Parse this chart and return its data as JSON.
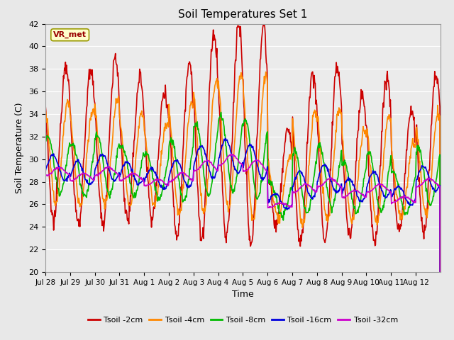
{
  "title": "Soil Temperatures Set 1",
  "xlabel": "Time",
  "ylabel": "Soil Temperature (C)",
  "ylim": [
    20,
    42
  ],
  "yticks": [
    20,
    22,
    24,
    26,
    28,
    30,
    32,
    34,
    36,
    38,
    40,
    42
  ],
  "xtick_labels": [
    "Jul 28",
    "Jul 29",
    "Jul 30",
    "Jul 31",
    "Aug 1",
    "Aug 2",
    "Aug 3",
    "Aug 4",
    "Aug 5",
    "Aug 6",
    "Aug 7",
    "Aug 8",
    "Aug 9",
    "Aug 10",
    "Aug 11",
    "Aug 12"
  ],
  "series": [
    {
      "label": "Tsoil -2cm",
      "color": "#cc0000",
      "amp": 7.0,
      "mean": 31.5,
      "phase": 0.58,
      "depth_lag": 0.0,
      "amp_mod": 1.0
    },
    {
      "label": "Tsoil -4cm",
      "color": "#ff8800",
      "amp": 4.5,
      "mean": 30.5,
      "phase": 0.62,
      "depth_lag": 0.05,
      "amp_mod": 0.9
    },
    {
      "label": "Tsoil -8cm",
      "color": "#00bb00",
      "amp": 2.5,
      "mean": 29.0,
      "phase": 0.7,
      "depth_lag": 0.15,
      "amp_mod": 0.7
    },
    {
      "label": "Tsoil -16cm",
      "color": "#0000dd",
      "amp": 1.1,
      "mean": 28.3,
      "phase": 0.8,
      "depth_lag": 0.25,
      "amp_mod": 0.5
    },
    {
      "label": "Tsoil -32cm",
      "color": "#cc00cc",
      "amp": 0.35,
      "mean": 27.2,
      "phase": 0.9,
      "depth_lag": 0.4,
      "amp_mod": 0.2
    }
  ],
  "annotation_text": "VR_met",
  "bg_color": "#e8e8e8",
  "plot_bg_color": "#ebebeb",
  "grid_color": "#ffffff",
  "linewidth": 1.2
}
